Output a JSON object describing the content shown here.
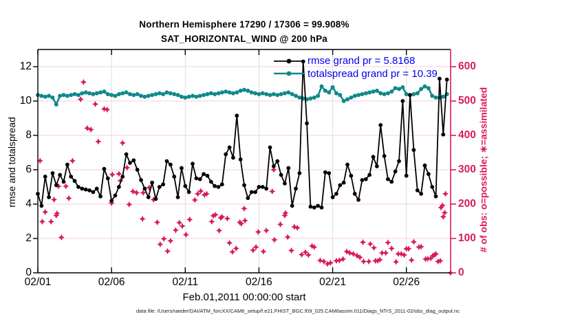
{
  "header": {
    "title_line1": "Northern Hemisphere 17290 / 17306 = 99.908%",
    "title_line2": "SAT_HORIZONTAL_WIND @ 200 hPa"
  },
  "colors": {
    "rmse": "#000000",
    "totalspread": "#10898a",
    "obs": "#d81b5c",
    "legend_text": "#0000ee",
    "grid_h": "#f4cfdb",
    "grid_v": "#dedede"
  },
  "legend": {
    "items": [
      {
        "label": "rmse grand pr = 5.8168",
        "series": "rmse"
      },
      {
        "label": "totalspread grand pr = 10.39",
        "series": "totalspread"
      }
    ]
  },
  "footer": {
    "data_file": "data file: /Users/raeder/DAI/ATM_forcXX/CAM6_setup/f.e21.FHIST_BGC.f09_025.CAM6assim.011/Diags_NTrS_2011-02/obs_diag_output.nc"
  },
  "chart_data": {
    "type": "line",
    "title": "Northern Hemisphere 17290 / 17306 = 99.908% — SAT_HORIZONTAL_WIND @ 200 hPa",
    "xlabel": "Feb.01,2011 00:00:00 start",
    "ylabel_left": "rmse and totalspread",
    "ylabel_right": "# of obs: o=possible; ∗=assimilated",
    "x_axis": {
      "tick_labels": [
        "02/01",
        "02/06",
        "02/11",
        "02/16",
        "02/21",
        "02/26"
      ],
      "tick_days": [
        1,
        6,
        11,
        16,
        21,
        26
      ],
      "range_days": [
        1,
        29
      ]
    },
    "y_axis_left": {
      "ticks": [
        0,
        2,
        4,
        6,
        8,
        10,
        12
      ],
      "range": [
        0,
        13
      ]
    },
    "y_axis_right": {
      "ticks": [
        0,
        100,
        200,
        300,
        400,
        500,
        600
      ],
      "range": [
        0,
        650
      ]
    },
    "grid": true,
    "legend_position": "top-right-inside",
    "series": [
      {
        "name": "rmse",
        "axis": "left",
        "kind": "line-markers",
        "day_start": 1.0,
        "day_step": 0.25,
        "values": [
          4.6,
          3.9,
          5.6,
          4.4,
          5.8,
          5.1,
          5.7,
          5.3,
          6.3,
          5.6,
          5.35,
          5.0,
          4.9,
          4.85,
          4.8,
          4.7,
          4.9,
          4.45,
          6.05,
          5.5,
          4.2,
          4.5,
          5.0,
          5.6,
          6.9,
          6.4,
          6.55,
          6.0,
          5.4,
          4.9,
          4.4,
          5.25,
          4.3,
          5.0,
          5.15,
          6.5,
          6.3,
          5.6,
          4.4,
          6.1,
          5.05,
          4.7,
          6.35,
          5.5,
          5.45,
          5.75,
          5.65,
          5.3,
          5.05,
          5.0,
          5.15,
          6.9,
          7.3,
          6.7,
          9.15,
          6.6,
          5.1,
          4.35,
          4.7,
          4.7,
          5.0,
          5.0,
          4.9,
          7.3,
          6.2,
          6.5,
          5.7,
          5.2,
          6.1,
          3.9,
          4.9,
          5.8,
          12.3,
          8.7,
          3.85,
          3.8,
          3.9,
          3.8,
          5.85,
          5.8,
          4.4,
          4.6,
          5.1,
          5.25,
          6.3,
          5.65,
          4.6,
          4.25,
          5.4,
          5.45,
          5.7,
          6.75,
          6.2,
          8.6,
          6.8,
          5.45,
          5.3,
          5.9,
          6.5,
          10.0,
          5.65,
          10.35,
          7.15,
          4.8,
          4.6,
          6.25,
          5.75,
          5.0,
          4.45,
          11.3,
          8.05,
          11.25
        ]
      },
      {
        "name": "totalspread",
        "axis": "left",
        "kind": "line-markers",
        "day_start": 1.0,
        "day_step": 0.25,
        "values": [
          10.35,
          10.3,
          10.25,
          10.3,
          10.2,
          9.8,
          10.3,
          10.35,
          10.3,
          10.35,
          10.4,
          10.35,
          10.45,
          10.5,
          10.45,
          10.4,
          10.45,
          10.5,
          10.55,
          10.4,
          10.35,
          10.3,
          10.4,
          10.45,
          10.5,
          10.4,
          10.35,
          10.4,
          10.3,
          10.25,
          10.3,
          10.35,
          10.4,
          10.45,
          10.4,
          10.5,
          10.45,
          10.4,
          10.35,
          10.25,
          10.2,
          10.25,
          10.3,
          10.25,
          10.3,
          10.35,
          10.4,
          10.45,
          10.4,
          10.45,
          10.5,
          10.55,
          10.5,
          10.45,
          10.5,
          10.6,
          10.65,
          10.6,
          10.5,
          10.45,
          10.4,
          10.45,
          10.4,
          10.35,
          10.4,
          10.35,
          10.4,
          10.45,
          10.5,
          10.4,
          10.3,
          10.2,
          10.15,
          10.1,
          10.15,
          10.2,
          10.3,
          10.85,
          10.6,
          10.5,
          10.8,
          10.45,
          10.35,
          10.0,
          10.1,
          10.2,
          10.3,
          10.35,
          10.4,
          10.45,
          10.5,
          10.55,
          10.6,
          10.45,
          10.4,
          10.45,
          10.55,
          10.75,
          10.7,
          10.8,
          10.4,
          10.35,
          10.4,
          10.45,
          10.7,
          10.85,
          10.75,
          10.3,
          10.2,
          10.2,
          10.25,
          10.4
        ]
      },
      {
        "name": "obs_count",
        "axis": "right",
        "kind": "scatter",
        "points": [
          [
            1.15,
            326
          ],
          [
            1.3,
            149
          ],
          [
            1.5,
            177
          ],
          [
            1.9,
            149
          ],
          [
            2.1,
            213
          ],
          [
            2.25,
            167
          ],
          [
            2.3,
            173
          ],
          [
            2.4,
            252
          ],
          [
            2.6,
            103
          ],
          [
            2.9,
            252
          ],
          [
            3.1,
            217
          ],
          [
            3.35,
            326
          ],
          [
            3.9,
            505
          ],
          [
            4.1,
            555
          ],
          [
            4.35,
            421
          ],
          [
            4.6,
            417
          ],
          [
            4.9,
            491
          ],
          [
            5.1,
            382
          ],
          [
            5.5,
            477
          ],
          [
            5.7,
            475
          ],
          [
            6.0,
            203
          ],
          [
            6.05,
            286
          ],
          [
            6.5,
            288
          ],
          [
            6.6,
            268
          ],
          [
            6.75,
            378
          ],
          [
            7.05,
            306
          ],
          [
            7.2,
            199
          ],
          [
            7.45,
            237
          ],
          [
            7.7,
            233
          ],
          [
            8.1,
            157
          ],
          [
            8.15,
            233
          ],
          [
            8.55,
            248
          ],
          [
            8.85,
            213
          ],
          [
            9.1,
            147
          ],
          [
            9.3,
            83
          ],
          [
            9.55,
            99
          ],
          [
            9.8,
            63
          ],
          [
            10.0,
            93
          ],
          [
            10.35,
            124
          ],
          [
            10.6,
            146
          ],
          [
            10.8,
            136
          ],
          [
            11.05,
            111
          ],
          [
            11.3,
            155
          ],
          [
            11.65,
            212
          ],
          [
            11.85,
            230
          ],
          [
            12.05,
            238
          ],
          [
            12.3,
            227
          ],
          [
            12.45,
            230
          ],
          [
            12.8,
            149
          ],
          [
            12.9,
            166
          ],
          [
            13.05,
            169
          ],
          [
            13.3,
            123
          ],
          [
            13.4,
            160
          ],
          [
            13.5,
            163
          ],
          [
            13.85,
            158
          ],
          [
            14.0,
            87
          ],
          [
            14.2,
            61
          ],
          [
            14.45,
            71
          ],
          [
            14.7,
            147
          ],
          [
            14.8,
            143
          ],
          [
            15.0,
            187
          ],
          [
            15.05,
            152
          ],
          [
            15.6,
            66
          ],
          [
            15.8,
            75
          ],
          [
            15.95,
            119
          ],
          [
            16.3,
            62
          ],
          [
            16.5,
            123
          ],
          [
            16.9,
            237
          ],
          [
            17.0,
            300
          ],
          [
            17.05,
            96
          ],
          [
            17.45,
            141
          ],
          [
            17.75,
            167
          ],
          [
            17.8,
            174
          ],
          [
            17.95,
            104
          ],
          [
            18.2,
            65
          ],
          [
            18.4,
            134
          ],
          [
            18.6,
            131
          ],
          [
            18.9,
            53
          ],
          [
            19.15,
            60
          ],
          [
            19.35,
            52
          ],
          [
            19.6,
            78
          ],
          [
            19.75,
            75
          ],
          [
            20.15,
            36
          ],
          [
            20.4,
            33
          ],
          [
            20.65,
            26
          ],
          [
            20.85,
            29
          ],
          [
            21.25,
            35
          ],
          [
            21.45,
            36
          ],
          [
            21.7,
            40
          ],
          [
            21.95,
            62
          ],
          [
            22.15,
            58
          ],
          [
            22.4,
            55
          ],
          [
            22.65,
            50
          ],
          [
            22.85,
            45
          ],
          [
            23.05,
            89
          ],
          [
            23.1,
            33
          ],
          [
            23.45,
            33
          ],
          [
            23.55,
            84
          ],
          [
            23.8,
            73
          ],
          [
            23.9,
            35
          ],
          [
            24.05,
            35
          ],
          [
            24.2,
            38
          ],
          [
            24.35,
            58
          ],
          [
            24.6,
            58
          ],
          [
            24.75,
            88
          ],
          [
            25.0,
            71
          ],
          [
            25.3,
            32
          ],
          [
            25.45,
            55
          ],
          [
            25.65,
            55
          ],
          [
            25.85,
            52
          ],
          [
            26.0,
            70
          ],
          [
            26.15,
            70
          ],
          [
            26.35,
            37
          ],
          [
            26.5,
            90
          ],
          [
            26.85,
            75
          ],
          [
            27.0,
            76
          ],
          [
            27.3,
            40
          ],
          [
            27.45,
            41
          ],
          [
            27.65,
            42
          ],
          [
            27.8,
            50
          ],
          [
            27.9,
            52
          ],
          [
            28.0,
            55
          ],
          [
            28.15,
            33
          ],
          [
            28.3,
            35
          ],
          [
            28.35,
            190
          ],
          [
            28.45,
            196
          ],
          [
            28.5,
            163
          ],
          [
            28.6,
            175
          ],
          [
            28.65,
            230
          ],
          [
            29.0,
            0
          ]
        ]
      }
    ]
  }
}
